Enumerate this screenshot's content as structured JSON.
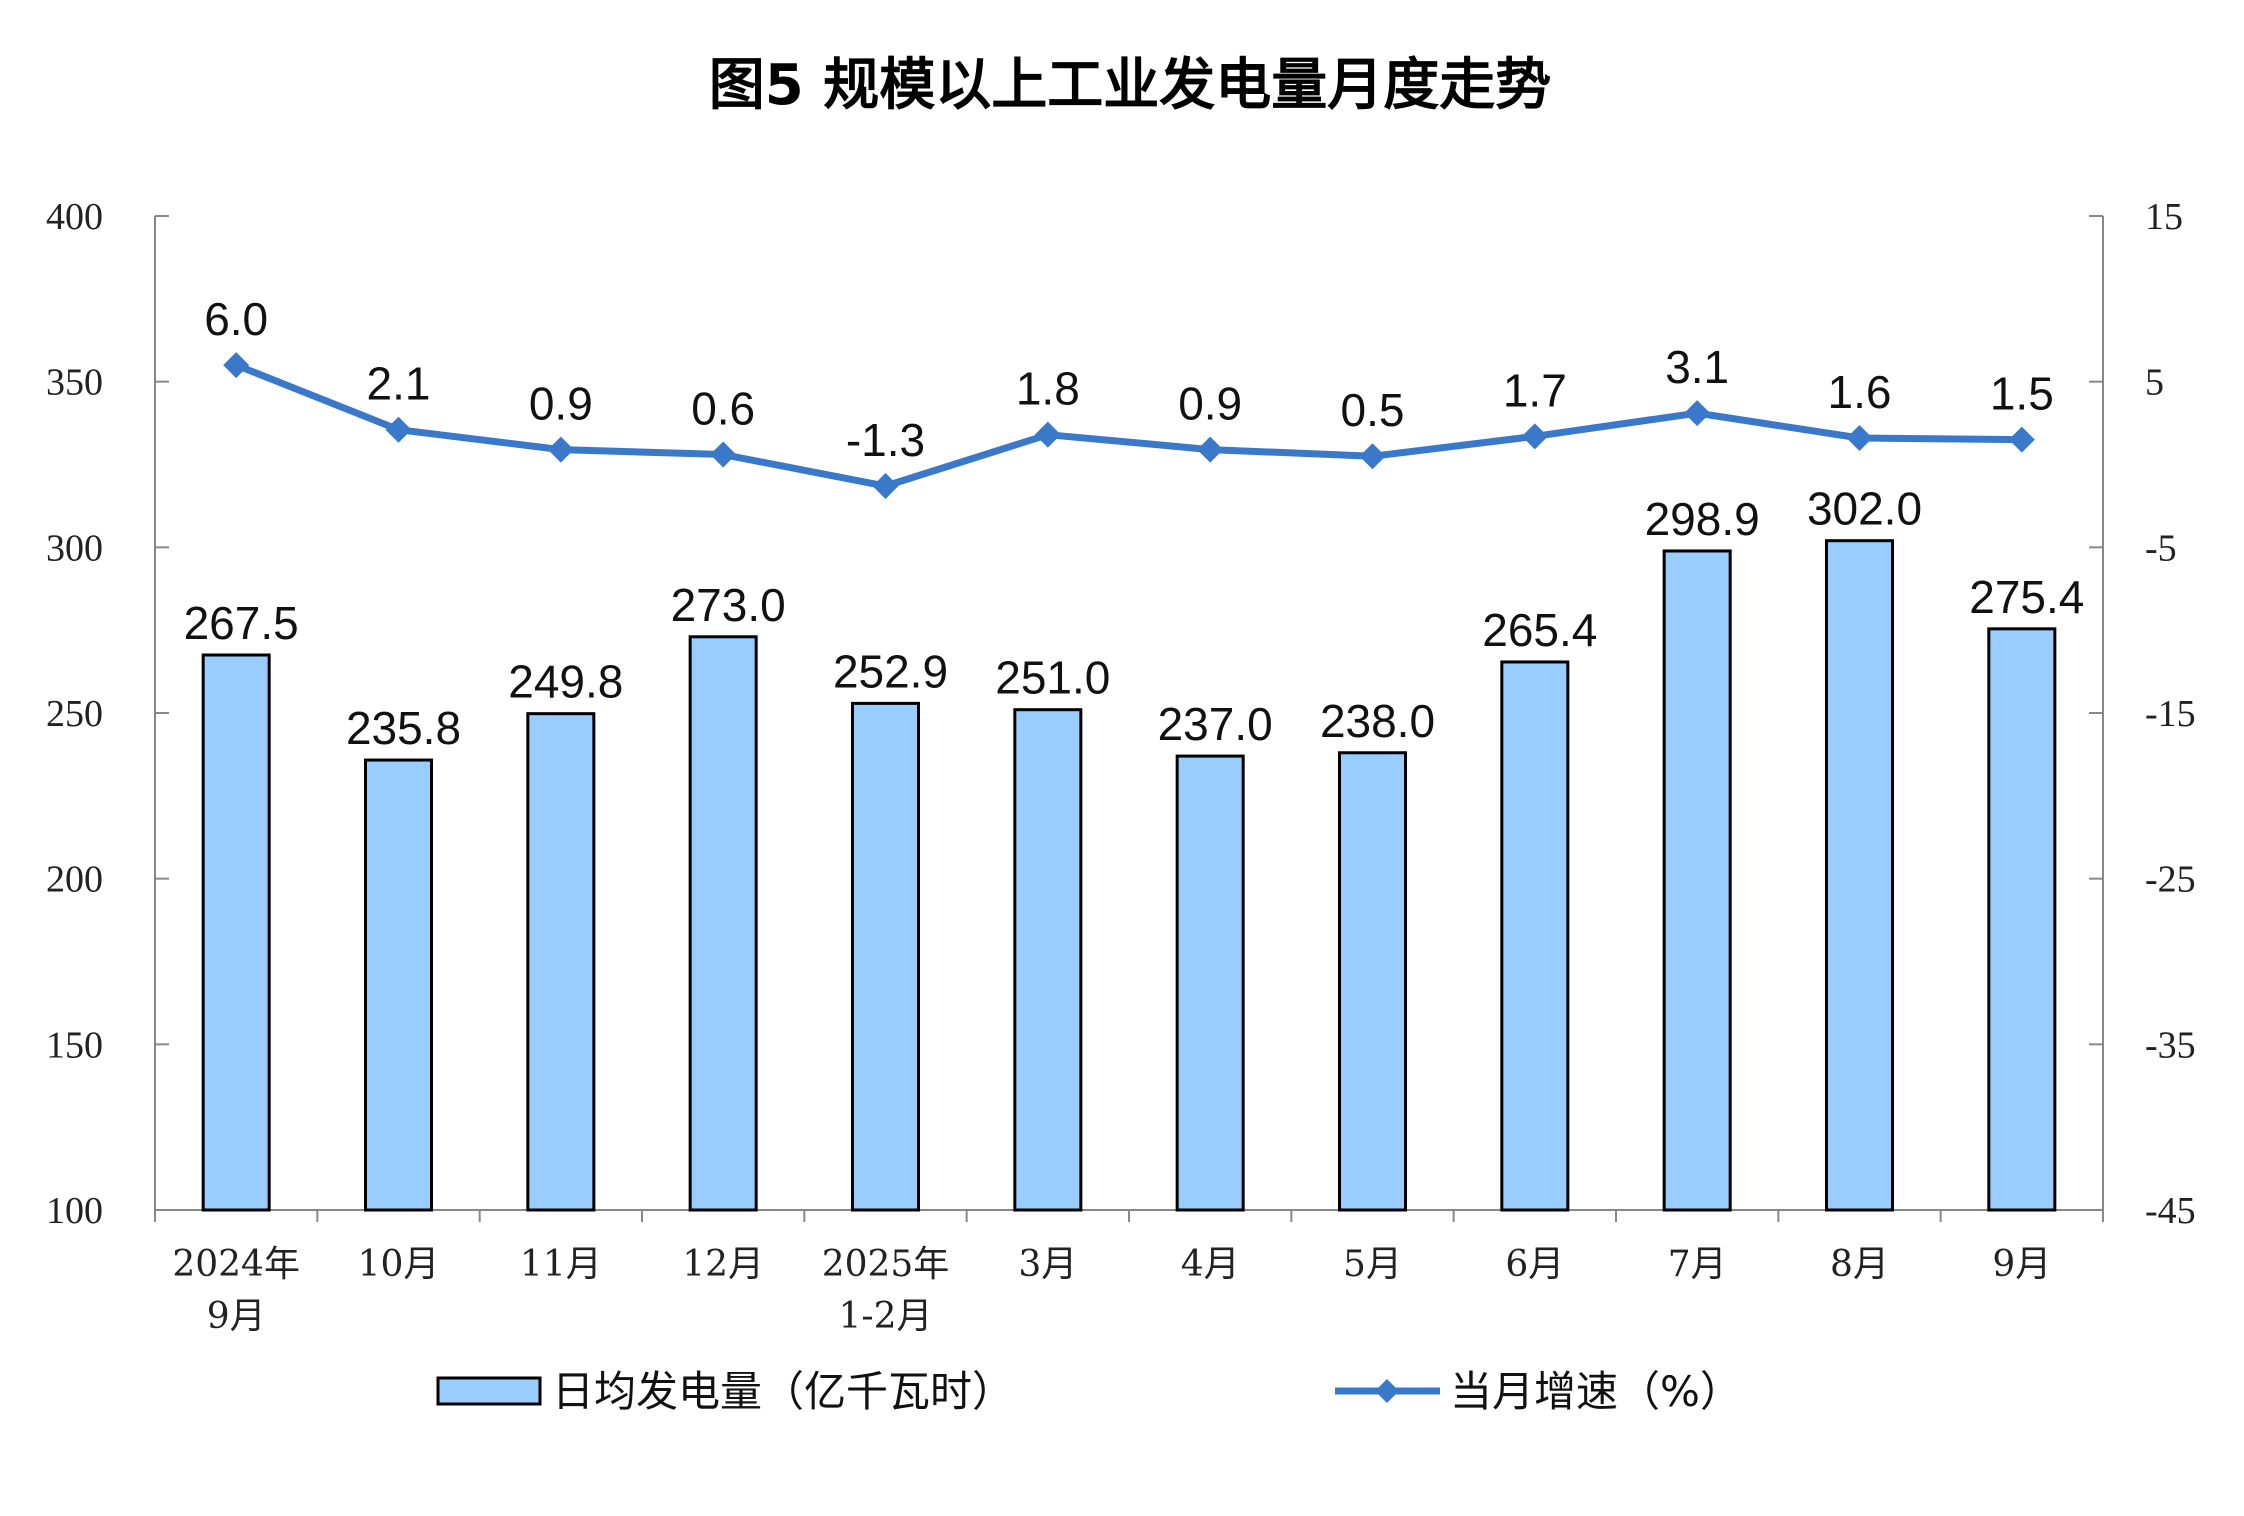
{
  "chart_data": {
    "type": "bar+line",
    "title": "图5  规模以上工业发电量月度走势",
    "categories": [
      [
        "2024年",
        "9月"
      ],
      [
        "10月"
      ],
      [
        "11月"
      ],
      [
        "12月"
      ],
      [
        "2025年",
        "1-2月"
      ],
      [
        "3月"
      ],
      [
        "4月"
      ],
      [
        "5月"
      ],
      [
        "6月"
      ],
      [
        "7月"
      ],
      [
        "8月"
      ],
      [
        "9月"
      ]
    ],
    "series": [
      {
        "name": "日均发电量（亿千瓦时）",
        "type": "bar",
        "axis": "left",
        "color": "#99ccff",
        "values": [
          267.5,
          235.8,
          249.8,
          273.0,
          252.9,
          251.0,
          237.0,
          238.0,
          265.4,
          298.9,
          302.0,
          275.4
        ],
        "labels": [
          "267.5",
          "235.8",
          "249.8",
          "273.0",
          "252.9",
          "251.0",
          "237.0",
          "238.0",
          "265.4",
          "298.9",
          "302.0",
          "275.4"
        ]
      },
      {
        "name": "当月增速（%）",
        "type": "line",
        "axis": "right",
        "color": "#3a78c9",
        "marker": "diamond",
        "values": [
          6.0,
          2.1,
          0.9,
          0.6,
          -1.3,
          1.8,
          0.9,
          0.5,
          1.7,
          3.1,
          1.6,
          1.5
        ],
        "labels": [
          "6.0",
          "2.1",
          "0.9",
          "0.6",
          "-1.3",
          "1.8",
          "0.9",
          "0.5",
          "1.7",
          "3.1",
          "1.6",
          "1.5"
        ]
      }
    ],
    "y_left": {
      "range": [
        100,
        400
      ],
      "ticks": [
        "100",
        "150",
        "200",
        "250",
        "300",
        "350",
        "400"
      ]
    },
    "y_right": {
      "range": [
        -45,
        15
      ],
      "ticks": [
        "-45",
        "-35",
        "-25",
        "-15",
        "-5",
        "5",
        "15"
      ]
    },
    "grid": false,
    "legend": "bottom"
  }
}
